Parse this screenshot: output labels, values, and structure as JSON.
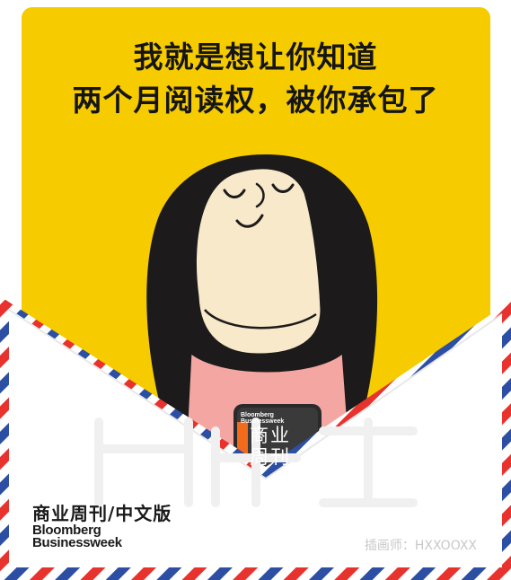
{
  "headline": {
    "line1": "我就是想让你知道",
    "line2": "两个月阅读权，被你承包了"
  },
  "magazine": {
    "name_cn": "商业周刊",
    "name_en_line1": "Bloomberg",
    "name_en_line2": "Businessweek"
  },
  "brand": {
    "name_cn": "商业周刊/中文版",
    "name_en_line1": "Bloomberg",
    "name_en_line2": "Businessweek"
  },
  "credit": "插画师：HXXOOXX",
  "colors": {
    "card_yellow": "#f6cb00",
    "hair": "#1c1a1b",
    "skin": "#f7e9c9",
    "shirt": "#f4a6a2",
    "airmail_red": "#e8322d",
    "airmail_blue": "#2c4fa3",
    "book_orange": "#f26a1b"
  }
}
